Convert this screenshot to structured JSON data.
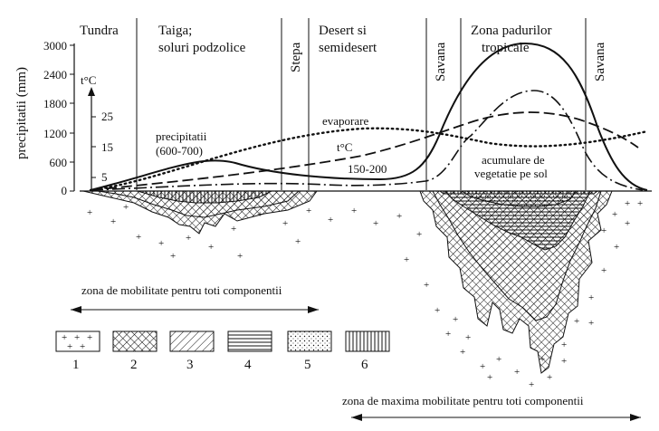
{
  "zones": {
    "tundra": "Tundra",
    "taiga_1": "Taiga;",
    "taiga_2": "soluri podzolice",
    "stepa": "Stepa",
    "desert_1": "Desert si",
    "desert_2": "semidesert",
    "savana_left": "Savana",
    "tropical_1": "Zona padurilor",
    "tropical_2": "tropicale",
    "savana_right": "Savana"
  },
  "axes": {
    "precip_label": "precipitatii (mm)",
    "precip_ticks": [
      "3000",
      "2400",
      "1800",
      "1200",
      "600",
      "0"
    ],
    "temp_label": "t°C",
    "temp_ticks": [
      "25",
      "15",
      "5"
    ]
  },
  "curve_labels": {
    "precip_1": "precipitatii",
    "precip_2": "(600-700)",
    "evaporation": "evaporare",
    "temperature": "t°C",
    "value_150_200": "150-200",
    "vegetation_1": "acumulare de",
    "vegetation_2": "vegetatie pe sol"
  },
  "bottom_labels": {
    "mobility_all": "zona de mobilitate pentru toti componentii",
    "max_mobility": "zona de maxima mobilitate pentru toti componentii"
  },
  "legend": [
    {
      "id": "1",
      "label": "1",
      "pattern": "crosses"
    },
    {
      "id": "2",
      "label": "2",
      "pattern": "crosshatch"
    },
    {
      "id": "3",
      "label": "3",
      "pattern": "diagonal"
    },
    {
      "id": "4",
      "label": "4",
      "pattern": "horizontal"
    },
    {
      "id": "5",
      "label": "5",
      "pattern": "dots"
    },
    {
      "id": "6",
      "label": "6",
      "pattern": "vertical"
    }
  ],
  "colors": {
    "ink": "#111111",
    "paper": "#ffffff"
  }
}
